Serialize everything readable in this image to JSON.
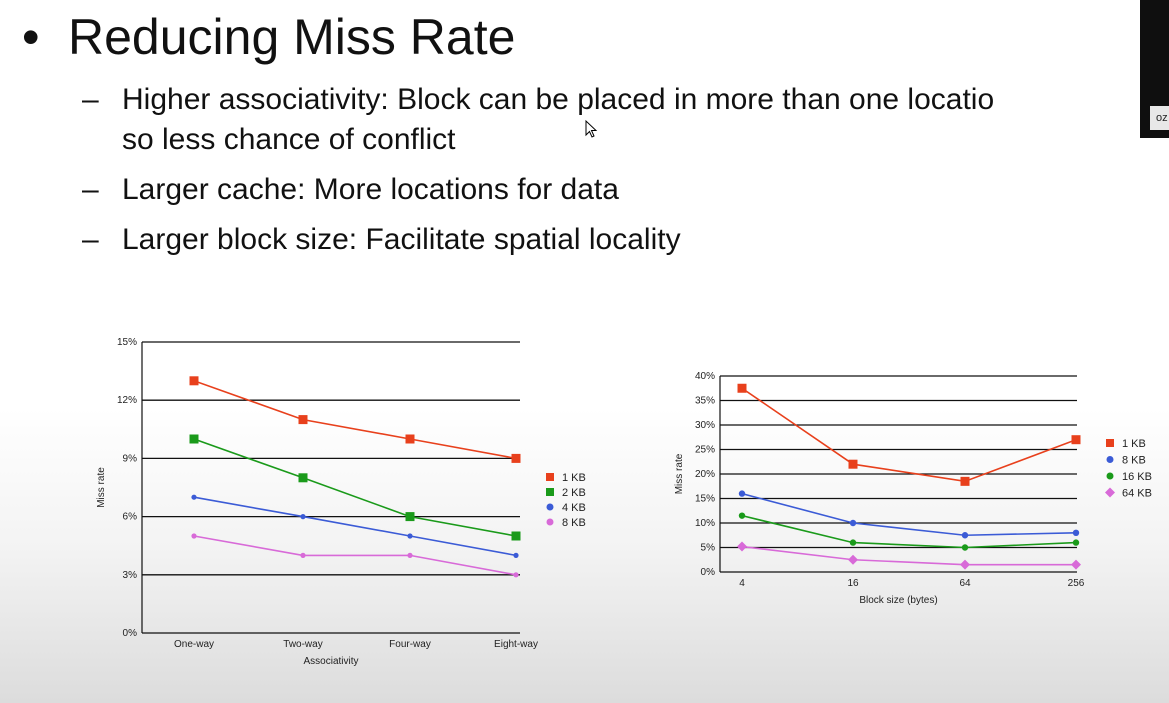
{
  "slide": {
    "title": "Reducing Miss Rate",
    "bullet_char": "•",
    "dash_char": "–",
    "bullets": [
      {
        "line1": "Higher associativity: Block can be placed in more than one locatio",
        "line2": "so less chance of conflict"
      },
      {
        "line1": "Larger cache: More locations for data"
      },
      {
        "line1": "Larger block size: Facilitate spatial locality"
      }
    ],
    "side_tag": "oz"
  },
  "chart_data": [
    {
      "type": "line",
      "xlabel": "Associativity",
      "ylabel": "Miss rate",
      "categories": [
        "One-way",
        "Two-way",
        "Four-way",
        "Eight-way"
      ],
      "yticks": [
        "0%",
        "3%",
        "6%",
        "9%",
        "12%",
        "15%"
      ],
      "ylim": [
        0,
        15
      ],
      "grid": "horizontal",
      "legend_position": "right",
      "series": [
        {
          "name": "1 KB",
          "color": "#e8401c",
          "marker": "square",
          "values": [
            13,
            11,
            10,
            9
          ]
        },
        {
          "name": "2 KB",
          "color": "#1a9a1a",
          "marker": "square",
          "values": [
            10,
            8,
            6,
            5
          ]
        },
        {
          "name": "4 KB",
          "color": "#3b5bd6",
          "marker": "circle",
          "values": [
            7,
            6,
            5,
            4
          ]
        },
        {
          "name": "8 KB",
          "color": "#d86ad8",
          "marker": "circle",
          "values": [
            5,
            4,
            4,
            3
          ]
        }
      ]
    },
    {
      "type": "line",
      "xlabel": "Block size (bytes)",
      "ylabel": "Miss rate",
      "categories": [
        "4",
        "16",
        "64",
        "256"
      ],
      "yticks": [
        "0%",
        "5%",
        "10%",
        "15%",
        "20%",
        "25%",
        "30%",
        "35%",
        "40%"
      ],
      "ylim": [
        0,
        40
      ],
      "grid": "horizontal",
      "legend_position": "right",
      "series": [
        {
          "name": "1 KB",
          "color": "#e8401c",
          "marker": "square",
          "values": [
            37.5,
            22,
            18.5,
            27
          ]
        },
        {
          "name": "8 KB",
          "color": "#3b5bd6",
          "marker": "circle",
          "values": [
            16,
            10,
            7.5,
            8
          ]
        },
        {
          "name": "16 KB",
          "color": "#1a9a1a",
          "marker": "circle",
          "values": [
            11.5,
            6,
            5,
            6
          ]
        },
        {
          "name": "64 KB",
          "color": "#d86ad8",
          "marker": "diamond",
          "values": [
            5.2,
            2.5,
            1.5,
            1.5
          ]
        }
      ]
    }
  ]
}
